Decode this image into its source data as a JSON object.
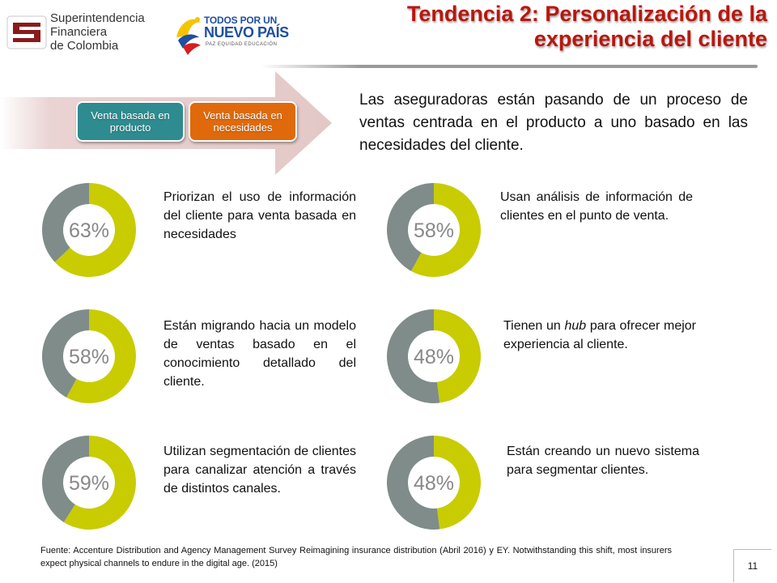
{
  "header": {
    "sfc_logo": {
      "line1": "Superintendencia",
      "line2": "Financiera",
      "line3": "de Colombia"
    },
    "gov_logo": {
      "line1": "TODOS POR UN",
      "line2": "NUEVO PAÍS",
      "tagline": "PAZ  EQUIDAD  EDUCACIÓN"
    },
    "title_line1": "Tendencia 2: Personalización de la",
    "title_line2": "experiencia del cliente"
  },
  "banner": {
    "pill_product": "Venta basada en producto",
    "pill_needs": "Venta basada en necesidades",
    "colors": {
      "arrow": "#ecd6d6",
      "product": "#2e8b8f",
      "needs": "#e06a0b"
    }
  },
  "intro": "Las aseguradoras están pasando de un proceso de ventas centrada en el producto a uno basado en las necesidades del cliente.",
  "stats": [
    {
      "value": 63,
      "label": "63%",
      "text": "Priorizan el uso de información del cliente para venta basada en necesidades"
    },
    {
      "value": 58,
      "label": "58%",
      "text": "Usan análisis de información de clientes en el punto de venta."
    },
    {
      "value": 58,
      "label": "58%",
      "text": "Están migrando hacia un modelo de ventas basado en el conocimiento detallado del cliente."
    },
    {
      "value": 48,
      "label": "48%",
      "text_before": "Tienen un ",
      "text_italic": "hub",
      "text_after": " para ofrecer mejor experiencia al cliente."
    },
    {
      "value": 59,
      "label": "59%",
      "text": "Utilizan segmentación de clientes para canalizar atención a través de distintos canales."
    },
    {
      "value": 48,
      "label": "48%",
      "text": "Están creando un nuevo sistema para segmentar clientes."
    }
  ],
  "donut_colors": {
    "filled": "#c8cc00",
    "rest": "#7f8c8a"
  },
  "source": "Fuente: Accenture Distribution and Agency Management Survey Reimagining insurance distribution (Abril 2016) y EY. Notwithstanding this shift, most insurers expect physical channels to endure in the digital age. (2015)",
  "page_number": "11"
}
